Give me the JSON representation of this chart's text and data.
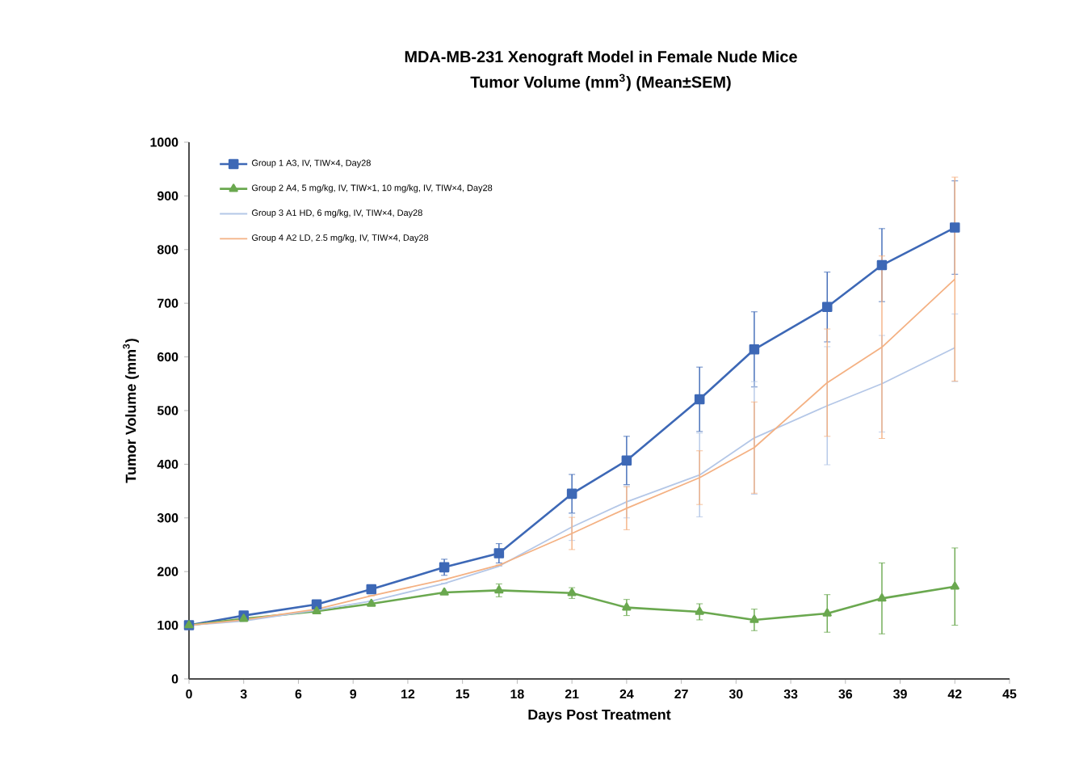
{
  "chart_data": {
    "type": "line",
    "title": "MDA-MB-231 Xenograft Model in Female Nude Mice",
    "subtitle": "Tumor Volume (mm$^{3}$) (Mean±SEM)",
    "xlabel": "Days Post Treatment",
    "ylabel": "Tumor Volume (mm$^{3}$)",
    "x": [
      0,
      3,
      7,
      10,
      14,
      17,
      21,
      24,
      28,
      31,
      35,
      38,
      42
    ],
    "xlim": [
      0,
      45
    ],
    "xticks": [
      0,
      3,
      6,
      9,
      12,
      15,
      18,
      21,
      24,
      27,
      30,
      33,
      36,
      39,
      42,
      45
    ],
    "ylim": [
      0,
      1000
    ],
    "yticks": [
      0,
      100,
      200,
      300,
      400,
      500,
      600,
      700,
      800,
      900,
      1000
    ],
    "grid": false,
    "legend": "top left",
    "line_style": "solid",
    "series": [
      {
        "name": "Group 1 A3, IV, TIW×4, Day28",
        "color": "#3d68b6",
        "marker": "square",
        "values": [
          100,
          118,
          139,
          167,
          208,
          234,
          345,
          407,
          521,
          614,
          693,
          771,
          841
        ],
        "errors": [
          null,
          null,
          null,
          null,
          15,
          18,
          36,
          45,
          60,
          70,
          65,
          68,
          87
        ]
      },
      {
        "name": "Group 2 A4, 5 mg/kg, IV, TIW×1, 10 mg/kg, IV, TIW×4, Day28",
        "color": "#6aa84f",
        "marker": "triangle",
        "values": [
          100,
          112,
          126,
          140,
          161,
          165,
          160,
          133,
          125,
          110,
          122,
          150,
          172
        ],
        "errors": [
          null,
          null,
          null,
          null,
          null,
          12,
          10,
          15,
          15,
          20,
          35,
          66,
          72
        ]
      },
      {
        "name": "Group 3 A1 HD, 6 mg/kg, IV, TIW×4, Day28",
        "color": "#b4c7e7",
        "marker": "none",
        "values": [
          100,
          108,
          128,
          145,
          178,
          210,
          283,
          330,
          380,
          449,
          509,
          550,
          617
        ],
        "errors": [
          null,
          null,
          null,
          null,
          null,
          null,
          25,
          30,
          78,
          105,
          110,
          90,
          63
        ]
      },
      {
        "name": "Group 4 A2 LD, 2.5 mg/kg, IV, TIW×4, Day28",
        "color": "#f4b183",
        "marker": "none",
        "values": [
          100,
          110,
          130,
          155,
          185,
          212,
          271,
          318,
          375,
          431,
          552,
          618,
          745
        ],
        "errors": [
          null,
          null,
          null,
          null,
          null,
          null,
          30,
          40,
          50,
          85,
          100,
          170,
          190
        ]
      }
    ]
  }
}
